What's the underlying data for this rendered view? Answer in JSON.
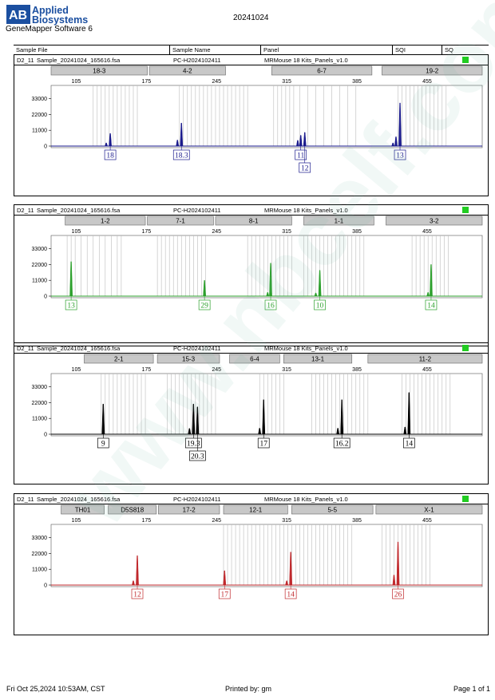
{
  "header": {
    "logo_lines": [
      "Applied",
      "Biosystems"
    ],
    "software": "GeneMapper Software 6",
    "run_date": "20241024"
  },
  "columns": {
    "sample_file": "Sample File",
    "sample_name": "Sample Name",
    "panel": "Panel",
    "sqi": "SQI",
    "sq": "SQ"
  },
  "watermark": "www.nbcelf.com.cn",
  "footer": {
    "printed_at": "Fri Oct 25,2024 10:53AM, CST",
    "printed_by": "Printed by: gm",
    "page": "Page 1 of 1"
  },
  "colors": {
    "blue": "#1a1a8c",
    "green": "#2ca02c",
    "black": "#000000",
    "red": "#c0282c",
    "status_ok": "#22cc22"
  },
  "chart_data": [
    {
      "type": "line",
      "row_id": "D2_11",
      "sample_file": "Sample_20241024_165616.fsa",
      "sample_name": "PC-H2024102411",
      "panel": "MRMouse 18 Kits_Panels_v1.0",
      "color": "#1a1a8c",
      "x_ticks": [
        105,
        175,
        245,
        315,
        385,
        455
      ],
      "y_ticks": [
        0,
        11000,
        22000,
        33000
      ],
      "xlim": [
        80,
        510
      ],
      "ylim": [
        0,
        40000
      ],
      "markers": [
        {
          "label": "18-3",
          "start": 80,
          "end": 176
        },
        {
          "label": "4-2",
          "start": 178,
          "end": 254
        },
        {
          "label": "6-7",
          "start": 300,
          "end": 400
        },
        {
          "label": "19-2",
          "start": 410,
          "end": 510
        }
      ],
      "bins": [
        122,
        126,
        130,
        134,
        138,
        142,
        146,
        150,
        154,
        158,
        162,
        166,
        208,
        212,
        216,
        220,
        224,
        228,
        232,
        236,
        240,
        244,
        248,
        252,
        256,
        260,
        264,
        268,
        272,
        276,
        302,
        306,
        310,
        314,
        318,
        322,
        328,
        336,
        344,
        352,
        360,
        368,
        376,
        384,
        426,
        430,
        434,
        438,
        442,
        446,
        450,
        454,
        458,
        462,
        466,
        470,
        474
      ],
      "peaks": [
        {
          "x": 135,
          "height": 2200
        },
        {
          "x": 139,
          "height": 8800
        },
        {
          "x": 206,
          "height": 4200
        },
        {
          "x": 210,
          "height": 16000
        },
        {
          "x": 326,
          "height": 4000
        },
        {
          "x": 329,
          "height": 7500
        },
        {
          "x": 333,
          "height": 9500
        },
        {
          "x": 421,
          "height": 2200
        },
        {
          "x": 424,
          "height": 6500
        },
        {
          "x": 428,
          "height": 30000
        }
      ],
      "allele_calls": [
        {
          "label": "18",
          "x": 139,
          "level": 0
        },
        {
          "label": "18.3",
          "x": 210,
          "level": 0
        },
        {
          "label": "11",
          "x": 329,
          "level": 0
        },
        {
          "label": "12",
          "x": 333,
          "level": 1
        },
        {
          "label": "13",
          "x": 428,
          "level": 0
        }
      ]
    },
    {
      "type": "line",
      "row_id": "D2_11",
      "sample_file": "Sample_20241024_165616.fsa",
      "sample_name": "PC-H2024102411",
      "panel": "MRMouse 18 Kits_Panels_v1.0",
      "color": "#2ca02c",
      "x_ticks": [
        105,
        175,
        245,
        315,
        385,
        455
      ],
      "y_ticks": [
        0,
        11000,
        22000,
        33000
      ],
      "xlim": [
        80,
        510
      ],
      "ylim": [
        0,
        40000
      ],
      "markers": [
        {
          "label": "1-2",
          "start": 94,
          "end": 174
        },
        {
          "label": "7-1",
          "start": 176,
          "end": 242
        },
        {
          "label": "8-1",
          "start": 244,
          "end": 320
        },
        {
          "label": "1-1",
          "start": 332,
          "end": 402
        },
        {
          "label": "3-2",
          "start": 414,
          "end": 510
        }
      ],
      "bins": [
        96,
        100,
        104,
        110,
        116,
        122,
        128,
        134,
        140,
        146,
        150,
        186,
        190,
        194,
        198,
        202,
        206,
        210,
        214,
        218,
        222,
        226,
        230,
        234,
        276,
        280,
        284,
        288,
        292,
        296,
        300,
        304,
        308,
        312,
        316,
        320,
        332,
        336,
        340,
        344,
        348,
        352,
        356,
        360,
        364,
        368,
        372,
        376,
        380,
        384,
        388,
        392,
        440,
        444,
        448,
        452,
        456,
        460,
        464,
        468,
        472,
        476
      ],
      "peaks": [
        {
          "x": 100,
          "height": 24000
        },
        {
          "x": 233,
          "height": 11000
        },
        {
          "x": 296,
          "height": 2600
        },
        {
          "x": 299,
          "height": 23000
        },
        {
          "x": 344,
          "height": 2200
        },
        {
          "x": 348,
          "height": 18000
        },
        {
          "x": 456,
          "height": 2600
        },
        {
          "x": 459,
          "height": 22000
        }
      ],
      "allele_calls": [
        {
          "label": "13",
          "x": 100,
          "level": 0
        },
        {
          "label": "29",
          "x": 233,
          "level": 0
        },
        {
          "label": "16",
          "x": 299,
          "level": 0
        },
        {
          "label": "10",
          "x": 348,
          "level": 0
        },
        {
          "label": "14",
          "x": 459,
          "level": 0
        }
      ]
    },
    {
      "type": "line",
      "row_id": "D2_11",
      "sample_file": "Sample_20241024_165616.fsa",
      "sample_name": "PC-H2024102411",
      "panel": "MRMouse 18 Kits_Panels_v1.0",
      "color": "#000000",
      "x_ticks": [
        105,
        175,
        245,
        315,
        385,
        455
      ],
      "y_ticks": [
        0,
        11000,
        22000,
        33000
      ],
      "xlim": [
        80,
        510
      ],
      "ylim": [
        0,
        40000
      ],
      "markers": [
        {
          "label": "2-1",
          "start": 113,
          "end": 182
        },
        {
          "label": "15-3",
          "start": 186,
          "end": 248
        },
        {
          "label": "6-4",
          "start": 258,
          "end": 308
        },
        {
          "label": "13-1",
          "start": 312,
          "end": 380
        },
        {
          "label": "11-2",
          "start": 396,
          "end": 510
        }
      ],
      "bins": [
        130,
        134,
        138,
        142,
        146,
        150,
        154,
        158,
        162,
        166,
        170,
        174,
        196,
        200,
        204,
        208,
        212,
        216,
        220,
        224,
        228,
        232,
        236,
        240,
        244,
        288,
        292,
        296,
        300,
        304,
        308,
        312,
        340,
        344,
        348,
        352,
        356,
        360,
        364,
        368,
        372,
        376,
        380,
        384,
        388,
        392,
        396,
        430,
        434,
        438,
        442,
        446,
        450,
        454,
        458,
        462,
        466,
        470,
        474,
        478
      ],
      "peaks": [
        {
          "x": 132,
          "height": 21000
        },
        {
          "x": 218,
          "height": 4000
        },
        {
          "x": 222,
          "height": 21000
        },
        {
          "x": 226,
          "height": 19000
        },
        {
          "x": 288,
          "height": 4200
        },
        {
          "x": 292,
          "height": 24000
        },
        {
          "x": 366,
          "height": 4200
        },
        {
          "x": 370,
          "height": 24000
        },
        {
          "x": 433,
          "height": 5000
        },
        {
          "x": 437,
          "height": 29000
        }
      ],
      "allele_calls": [
        {
          "label": "9",
          "x": 132,
          "level": 0
        },
        {
          "label": "19.3",
          "x": 222,
          "level": 0
        },
        {
          "label": "20.3",
          "x": 226,
          "level": 1
        },
        {
          "label": "17",
          "x": 292,
          "level": 0
        },
        {
          "label": "16.2",
          "x": 370,
          "level": 0
        },
        {
          "label": "14",
          "x": 437,
          "level": 0
        }
      ]
    },
    {
      "type": "line",
      "row_id": "D2_11",
      "sample_file": "Sample_20241024_165616.fsa",
      "sample_name": "PC-H2024102411",
      "panel": "MRMouse 18 Kits_Panels_v1.0",
      "color": "#c0282c",
      "x_ticks": [
        105,
        175,
        245,
        315,
        385,
        455
      ],
      "y_ticks": [
        0,
        11000,
        22000,
        33000
      ],
      "xlim": [
        80,
        510
      ],
      "ylim": [
        0,
        40000
      ],
      "markers": [
        {
          "label": "TH01",
          "start": 90,
          "end": 133
        },
        {
          "label": "D5S818",
          "start": 137,
          "end": 185
        },
        {
          "label": "17-2",
          "start": 187,
          "end": 248
        },
        {
          "label": "12-1",
          "start": 252,
          "end": 316
        },
        {
          "label": "5-5",
          "start": 320,
          "end": 401
        },
        {
          "label": "X-1",
          "start": 404,
          "end": 510
        }
      ],
      "bins": [
        252,
        256,
        260,
        264,
        268,
        272,
        276,
        280,
        284,
        288,
        292,
        296,
        300,
        304,
        308,
        312,
        316,
        320,
        324,
        328,
        332,
        336,
        340,
        344,
        348,
        352,
        356,
        360,
        364,
        368,
        372,
        376,
        380,
        410,
        414,
        418,
        422,
        426,
        430,
        434,
        438,
        442,
        446,
        450,
        454,
        458
      ],
      "peaks": [
        {
          "x": 162,
          "height": 3000
        },
        {
          "x": 166,
          "height": 20500
        },
        {
          "x": 253,
          "height": 10000
        },
        {
          "x": 315,
          "height": 3000
        },
        {
          "x": 319,
          "height": 23000
        },
        {
          "x": 422,
          "height": 7000
        },
        {
          "x": 426,
          "height": 30000
        }
      ],
      "allele_calls": [
        {
          "label": "12",
          "x": 166,
          "level": 0
        },
        {
          "label": "17",
          "x": 253,
          "level": 0
        },
        {
          "label": "14",
          "x": 319,
          "level": 0
        },
        {
          "label": "26",
          "x": 426,
          "level": 0
        }
      ]
    }
  ]
}
